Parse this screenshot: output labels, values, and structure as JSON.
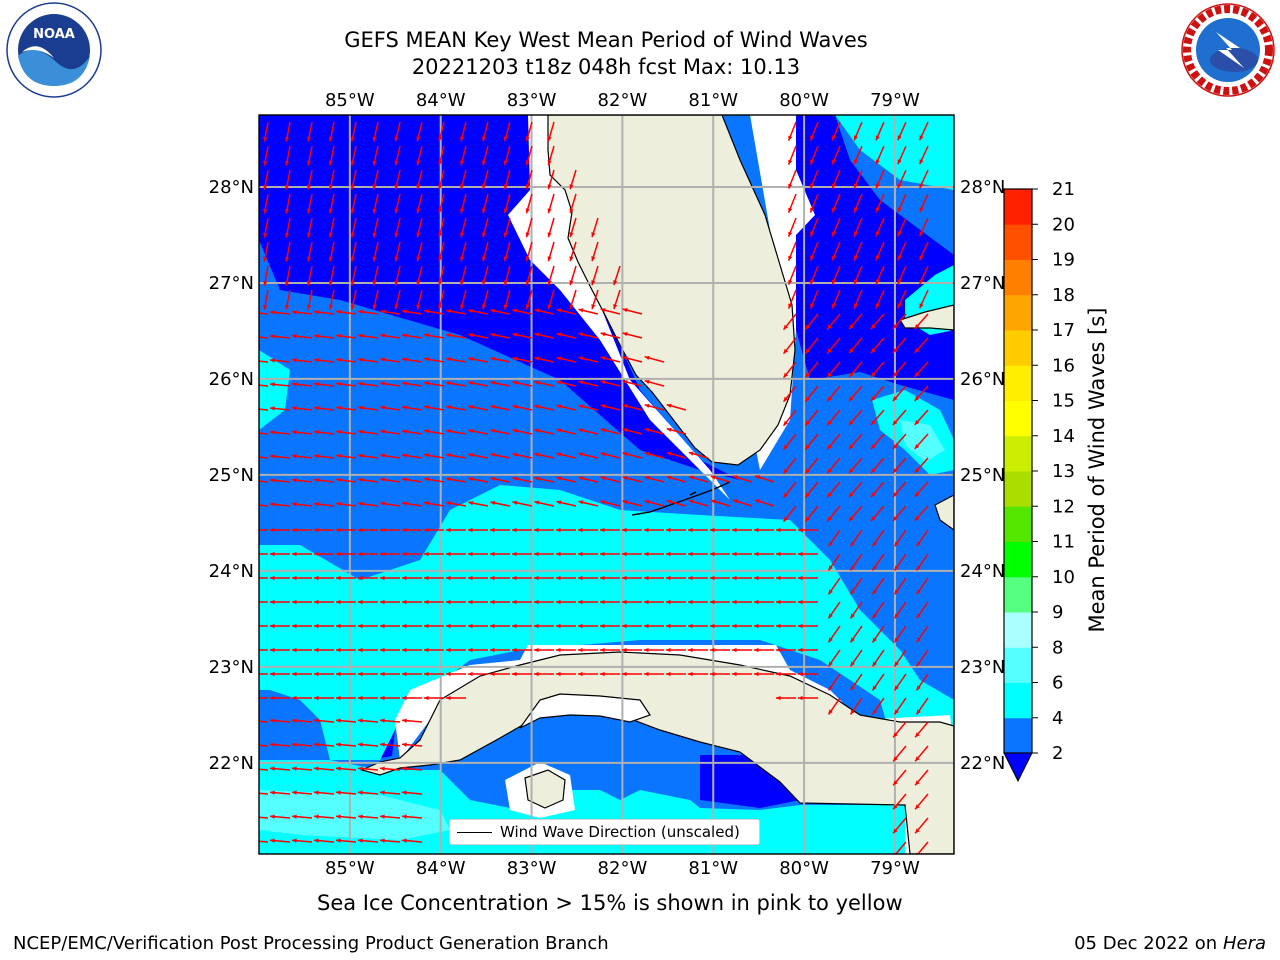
{
  "header": {
    "title_line1": "GEFS MEAN Key West Mean Period of Wind Waves",
    "title_line2": "20221203 t18z 048h fcst   Max: 10.13"
  },
  "logos": {
    "left": {
      "name": "NOAA",
      "ring_text": "NATIONAL OCEANIC AND ATMOSPHERIC ADMINISTRATION · U.S. DEPARTMENT OF COMMERCE"
    },
    "right": {
      "name": "NATIONAL WEATHER SERVICE"
    }
  },
  "map": {
    "lon_ticks": [
      "85°W",
      "84°W",
      "83°W",
      "82°W",
      "81°W",
      "80°W",
      "79°W"
    ],
    "lat_ticks": [
      "28°N",
      "27°N",
      "26°N",
      "25°N",
      "24°N",
      "23°N",
      "22°N"
    ],
    "lon_range": [
      -86.0,
      -78.35
    ],
    "lat_range": [
      21.05,
      28.75
    ],
    "legend_label": "Wind Wave Direction (unscaled)",
    "land_color": "#eeeedc",
    "arrow_color": "#ff0000"
  },
  "colorbar": {
    "label": "Mean Period of Wind Waves [s]",
    "ticks": [
      "2",
      "4",
      "6",
      "8",
      "9",
      "10",
      "11",
      "12",
      "13",
      "14",
      "15",
      "16",
      "17",
      "18",
      "19",
      "20",
      "21"
    ],
    "colors": [
      "#0000ff",
      "#0a75ff",
      "#00ffff",
      "#55ffff",
      "#aaffff",
      "#55ff80",
      "#00ff00",
      "#55e600",
      "#aadd00",
      "#ccee00",
      "#ffff00",
      "#ffee00",
      "#ffcc00",
      "#ffa500",
      "#ff8000",
      "#ff5000",
      "#ff2000",
      "#ff0000"
    ],
    "extend": "min"
  },
  "sea_ice_note": "Sea Ice Concentration > 15% is shown in pink to yellow",
  "footer": {
    "left": "NCEP/EMC/Verification Post Processing Product Generation Branch",
    "right_date": "05 Dec 2022 on",
    "right_host": "Hera"
  }
}
